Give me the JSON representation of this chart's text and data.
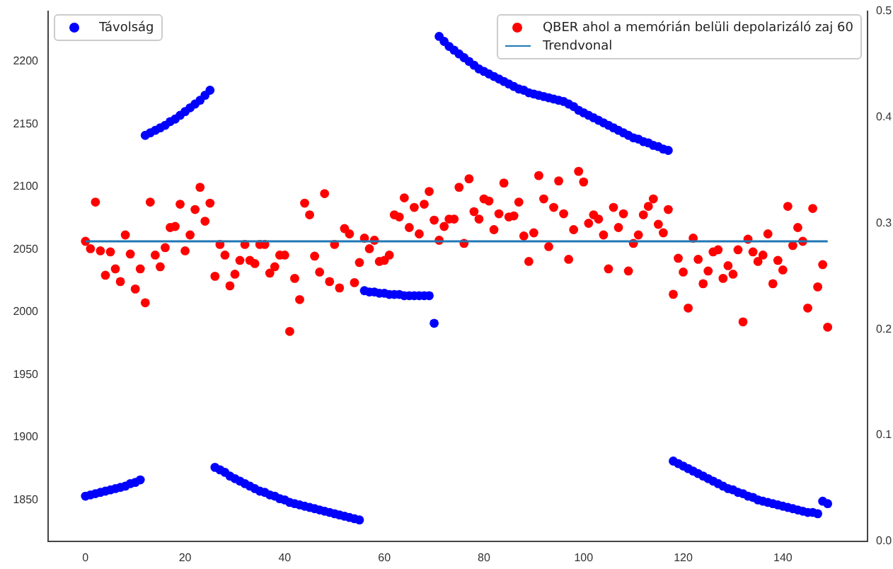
{
  "chart_data": {
    "type": "scatter",
    "x": [
      0,
      1,
      2,
      3,
      4,
      5,
      6,
      7,
      8,
      9,
      10,
      11,
      12,
      13,
      14,
      15,
      16,
      17,
      18,
      19,
      20,
      21,
      22,
      23,
      24,
      25,
      26,
      27,
      28,
      29,
      30,
      31,
      32,
      33,
      34,
      35,
      36,
      37,
      38,
      39,
      40,
      41,
      42,
      43,
      44,
      45,
      46,
      47,
      48,
      49,
      50,
      51,
      52,
      53,
      54,
      55,
      56,
      57,
      58,
      59,
      60,
      61,
      62,
      63,
      64,
      65,
      66,
      67,
      68,
      69,
      70,
      71,
      72,
      73,
      74,
      75,
      76,
      77,
      78,
      79,
      80,
      81,
      82,
      83,
      84,
      85,
      86,
      87,
      88,
      89,
      90,
      91,
      92,
      93,
      94,
      95,
      96,
      97,
      98,
      99,
      100,
      101,
      102,
      103,
      104,
      105,
      106,
      107,
      108,
      109,
      110,
      111,
      112,
      113,
      114,
      115,
      116,
      117,
      118,
      119,
      120,
      121,
      122,
      123,
      124,
      125,
      126,
      127,
      128,
      129,
      130,
      131,
      132,
      133,
      134,
      135,
      136,
      137,
      138,
      139,
      140,
      141,
      142,
      143,
      144,
      145,
      146,
      147,
      148,
      149
    ],
    "series": [
      {
        "name": "Távolság",
        "color": "#0000ff",
        "values": [
          1853,
          1854,
          1855,
          1856,
          1857,
          1858,
          1859,
          1860,
          1861,
          1863,
          1864,
          1866,
          2141,
          2143,
          2145,
          2147,
          2149,
          2152,
          2154,
          2157,
          2160,
          2163,
          2166,
          2169,
          2173,
          2177,
          1876,
          1874,
          1872,
          1869,
          1867,
          1865,
          1863,
          1861,
          1859,
          1857,
          1856,
          1854,
          1853,
          1851,
          1850,
          1848,
          1847,
          1846,
          1845,
          1844,
          1843,
          1842,
          1841,
          1840,
          1839,
          1838,
          1837,
          1836,
          1835,
          1834,
          2017,
          2016,
          2016,
          2015,
          2015,
          2014,
          2014,
          2014,
          2013,
          2013,
          2013,
          2013,
          2013,
          2013,
          1991,
          2220,
          2216,
          2212,
          2209,
          2206,
          2203,
          2200,
          2197,
          2194,
          2192,
          2190,
          2188,
          2186,
          2184,
          2182,
          2180,
          2178,
          2177,
          2175,
          2174,
          2173,
          2172,
          2171,
          2170,
          2169,
          2168,
          2166,
          2164,
          2161,
          2159,
          2157,
          2155,
          2153,
          2151,
          2149,
          2147,
          2145,
          2143,
          2141,
          2139,
          2138,
          2136,
          2135,
          2133,
          2132,
          2130,
          2129,
          1881,
          1879,
          1877,
          1875,
          1873,
          1871,
          1869,
          1867,
          1865,
          1863,
          1861,
          1859,
          1858,
          1856,
          1855,
          1853,
          1852,
          1850,
          1849,
          1848,
          1847,
          1846,
          1845,
          1844,
          1843,
          1842,
          1841,
          1840,
          1840,
          1839,
          1849,
          1847
        ]
      },
      {
        "name": "QBER ahol a memórián belüli depolarizáló zaj 60",
        "color": "#ff0000",
        "axis": "y2",
        "values": [
          0.283,
          0.276,
          0.32,
          0.274,
          0.251,
          0.273,
          0.257,
          0.245,
          0.289,
          0.271,
          0.238,
          0.257,
          0.225,
          0.32,
          0.27,
          0.259,
          0.277,
          0.296,
          0.297,
          0.318,
          0.274,
          0.289,
          0.313,
          0.334,
          0.302,
          0.319,
          0.25,
          0.28,
          0.27,
          0.241,
          0.252,
          0.265,
          0.28,
          0.265,
          0.262,
          0.28,
          0.28,
          0.253,
          0.259,
          0.27,
          0.27,
          0.198,
          0.248,
          0.228,
          0.319,
          0.308,
          0.269,
          0.254,
          0.328,
          0.245,
          0.28,
          0.239,
          0.295,
          0.29,
          0.244,
          0.263,
          0.286,
          0.276,
          0.284,
          0.264,
          0.265,
          0.27,
          0.308,
          0.306,
          0.324,
          0.296,
          0.315,
          0.29,
          0.318,
          0.33,
          0.303,
          0.284,
          0.297,
          0.304,
          0.304,
          0.334,
          0.281,
          0.342,
          0.311,
          0.304,
          0.323,
          0.321,
          0.294,
          0.309,
          0.338,
          0.306,
          0.307,
          0.32,
          0.288,
          0.264,
          0.291,
          0.345,
          0.323,
          0.278,
          0.315,
          0.34,
          0.309,
          0.266,
          0.294,
          0.349,
          0.339,
          0.3,
          0.308,
          0.304,
          0.289,
          0.257,
          0.315,
          0.296,
          0.309,
          0.255,
          0.281,
          0.289,
          0.308,
          0.316,
          0.323,
          0.299,
          0.291,
          0.313,
          0.233,
          0.267,
          0.254,
          0.22,
          0.286,
          0.266,
          0.243,
          0.255,
          0.273,
          0.275,
          0.248,
          0.26,
          0.252,
          0.275,
          0.207,
          0.285,
          0.273,
          0.264,
          0.27,
          0.29,
          0.243,
          0.265,
          0.256,
          0.316,
          0.279,
          0.296,
          0.283,
          0.22,
          0.314,
          0.24,
          0.261,
          0.202
        ]
      },
      {
        "name": "Trendvonal",
        "type": "line",
        "color": "#1f77b4",
        "axis": "y2",
        "marker": "none",
        "x": [
          0,
          149
        ],
        "values": [
          0.283,
          0.283
        ]
      }
    ],
    "xlim": [
      -7.5,
      157
    ],
    "xticks": [
      0,
      20,
      40,
      60,
      80,
      100,
      120,
      140
    ],
    "ylim": [
      1817,
      2240
    ],
    "yticks": [
      1850,
      1900,
      1950,
      2000,
      2050,
      2100,
      2150,
      2200
    ],
    "y2lim": [
      0,
      0.5
    ],
    "y2ticks": [
      {
        "value": 0,
        "label": "0.0"
      },
      {
        "value": 0.1,
        "label": "0.1"
      },
      {
        "value": 0.2,
        "label": "0.2"
      },
      {
        "value": 0.3,
        "label": "0.3"
      },
      {
        "value": 0.4,
        "label": "0.4"
      },
      {
        "value": 0.5,
        "label": "0.5"
      }
    ],
    "marker": "circle",
    "grid": false,
    "legend": "top"
  }
}
